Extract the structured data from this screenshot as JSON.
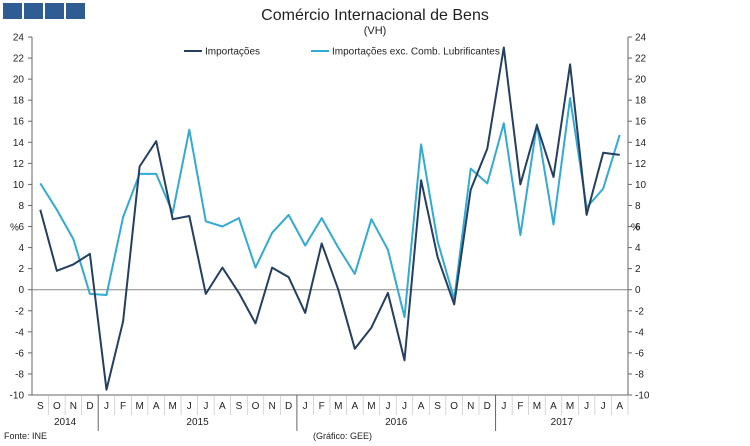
{
  "header": {
    "logo_icon": "brand-squares-icon"
  },
  "chart_data": {
    "type": "line",
    "title": "Comércio Internacional de Bens",
    "subtitle": "(VH)",
    "ylabel_left": "%",
    "ylabel_right": "%",
    "ylim": [
      -10,
      24
    ],
    "yticks": [
      -10,
      -8,
      -6,
      -4,
      -2,
      0,
      2,
      4,
      6,
      8,
      10,
      12,
      14,
      16,
      18,
      20,
      22,
      24
    ],
    "legend_position": "top-center",
    "x": [
      "S",
      "O",
      "N",
      "D",
      "J",
      "F",
      "M",
      "A",
      "M",
      "J",
      "J",
      "A",
      "S",
      "O",
      "N",
      "D",
      "J",
      "F",
      "M",
      "A",
      "M",
      "J",
      "J",
      "A",
      "S",
      "O",
      "N",
      "D",
      "J",
      "F",
      "M",
      "A",
      "M",
      "J",
      "J",
      "A"
    ],
    "years": [
      {
        "label": "2014",
        "start": 0,
        "end": 3
      },
      {
        "label": "2015",
        "start": 4,
        "end": 15
      },
      {
        "label": "2016",
        "start": 16,
        "end": 27
      },
      {
        "label": "2017",
        "start": 28,
        "end": 35
      }
    ],
    "series": [
      {
        "name": "Importações",
        "color": "#243f60",
        "values": [
          7.6,
          1.8,
          2.4,
          3.4,
          -9.5,
          -3.0,
          11.7,
          14.1,
          6.7,
          7.0,
          -0.4,
          2.1,
          -0.3,
          -3.2,
          2.1,
          1.2,
          -2.2,
          4.4,
          0.0,
          -5.6,
          -3.6,
          -0.3,
          -6.7,
          10.4,
          3.1,
          -1.4,
          9.5,
          13.4,
          23.0,
          10.0,
          15.6,
          10.7,
          21.4,
          7.1,
          13.0,
          12.8
        ]
      },
      {
        "name": "Importações exc. Comb. Lubrificantes",
        "color": "#33a9d6",
        "values": [
          10.1,
          7.6,
          4.8,
          -0.4,
          -0.5,
          6.9,
          11.0,
          11.0,
          7.3,
          15.2,
          6.5,
          6.0,
          6.8,
          2.1,
          5.4,
          7.1,
          4.2,
          6.8,
          4.0,
          1.5,
          6.7,
          3.8,
          -2.6,
          13.8,
          4.6,
          -0.9,
          11.5,
          10.1,
          15.8,
          5.2,
          15.7,
          6.2,
          18.2,
          7.8,
          9.6,
          14.7
        ]
      }
    ]
  },
  "footer": {
    "source": "Fonte: INE",
    "graph_credit": "(Gráfico: GEE)"
  }
}
